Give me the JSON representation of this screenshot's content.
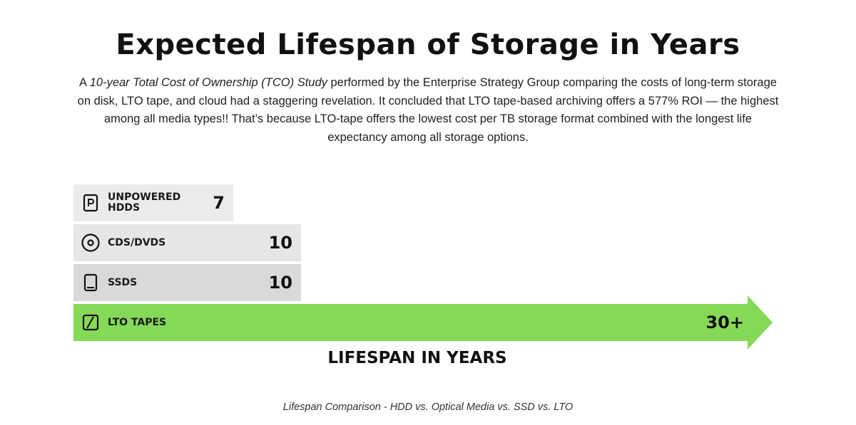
{
  "title": "Expected Lifespan of Storage in Years",
  "intro": {
    "prefix": "A ",
    "study": "10-year Total Cost of Ownership (TCO) Study",
    "body": " performed by the Enterprise Strategy Group comparing the costs of long-term storage on disk, LTO tape, and cloud had a staggering revelation. It concluded that LTO tape-based archiving offers a 577% ROI — the highest among all media types!! That’s because LTO-tape offers the lowest cost per TB storage format combined with the longest life expectancy among all storage options."
  },
  "chart_data": {
    "type": "bar",
    "orientation": "horizontal",
    "xlabel": "LIFESPAN IN YEARS",
    "categories": [
      "UNPOWERED HDDS",
      "CDS/DVDS",
      "SSDS",
      "LTO TAPES"
    ],
    "values": [
      7,
      10,
      10,
      30
    ],
    "value_labels": [
      "7",
      "10",
      "10",
      "30+"
    ],
    "icons": [
      "hdd-icon",
      "disc-icon",
      "ssd-icon",
      "tape-icon"
    ],
    "colors": [
      "#ebebeb",
      "#e6e6e6",
      "#d9d9d9",
      "#86d957"
    ]
  },
  "caption": "Lifespan Comparison - HDD vs. Optical Media vs. SSD vs. LTO"
}
